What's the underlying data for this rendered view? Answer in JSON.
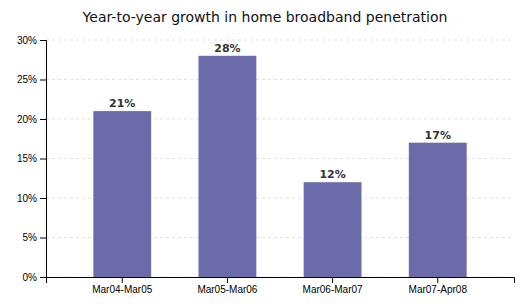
{
  "chart_data": {
    "type": "bar",
    "title": "Year-to-year growth in home broadband penetration",
    "categories": [
      "Mar04-Mar05",
      "Mar05-Mar06",
      "Mar06-Mar07",
      "Mar07-Apr08"
    ],
    "values": [
      21,
      28,
      12,
      17
    ],
    "value_labels": [
      "21%",
      "28%",
      "12%",
      "17%"
    ],
    "data_labels": true,
    "color": "#6b6baa",
    "ylim": [
      0,
      30
    ],
    "yticks": [
      {
        "value": 0,
        "label": "0%"
      },
      {
        "value": 5,
        "label": "5%"
      },
      {
        "value": 10,
        "label": "10%"
      },
      {
        "value": 15,
        "label": "15%"
      },
      {
        "value": 20,
        "label": "20%"
      },
      {
        "value": 25,
        "label": "25%"
      },
      {
        "value": 30,
        "label": "30%"
      }
    ],
    "grid": true
  }
}
